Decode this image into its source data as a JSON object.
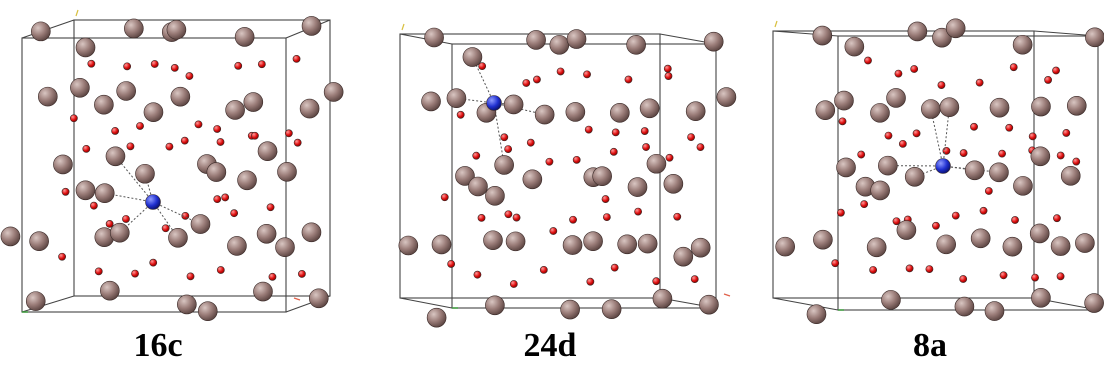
{
  "colors": {
    "large_atom": "#9a7c78",
    "large_atom_highlight": "#d9c6c2",
    "large_atom_shadow": "#5e4744",
    "small_atom": "#e01010",
    "small_atom_highlight": "#ff9a9a",
    "dopant_atom": "#1f2fd0",
    "dopant_highlight": "#8f9bff",
    "cell_edge": "#444444",
    "bond": "#555555",
    "axis_a": "#e0604a",
    "axis_b": "#3a9a3a",
    "axis_c": "#d8c040"
  },
  "panels": [
    {
      "site_label": "16c"
    },
    {
      "site_label": "24d"
    },
    {
      "site_label": "8a"
    }
  ]
}
